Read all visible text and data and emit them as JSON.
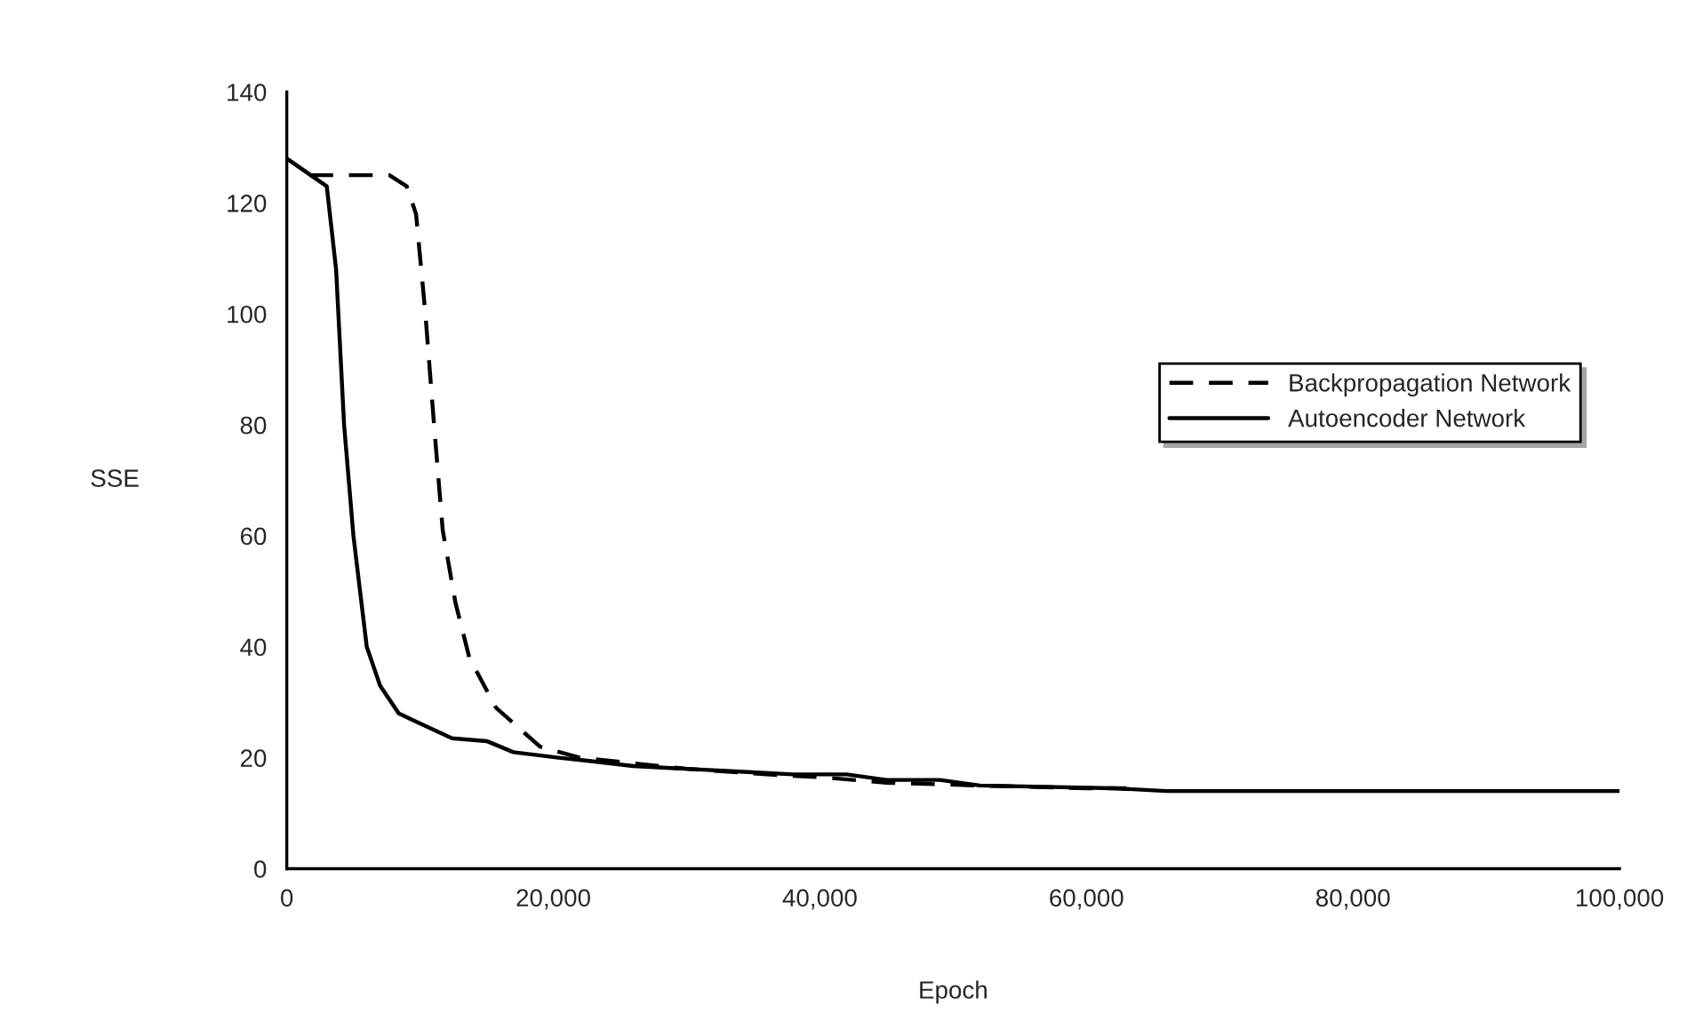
{
  "chart_data": {
    "type": "line",
    "xlabel": "Epoch",
    "ylabel": "SSE",
    "xlim": [
      0,
      100000
    ],
    "ylim": [
      0,
      140
    ],
    "xticks": [
      0,
      {
        "value": 20000,
        "label": "20,000"
      },
      {
        "value": 40000,
        "label": "40,000"
      },
      {
        "value": 60000,
        "label": "60,000"
      },
      {
        "value": 80000,
        "label": "80,000"
      },
      {
        "value": 100000,
        "label": "100,000"
      }
    ],
    "yticks": [
      0,
      20,
      40,
      60,
      80,
      100,
      120,
      140
    ],
    "grid": false,
    "legend": "right",
    "marker": "none",
    "series": [
      {
        "name": "Backpropagation Network",
        "color": "#000000",
        "line_style": "dashed",
        "x": [
          1700,
          7700,
          9000,
          9700,
          10400,
          11050,
          11700,
          12650,
          13700,
          15700,
          19000,
          22000,
          26000,
          30000,
          36000,
          40000,
          45000,
          52000,
          60000,
          63000
        ],
        "values": [
          125,
          125,
          123,
          118,
          100,
          80,
          61,
          48,
          38,
          29,
          22,
          20,
          19,
          18,
          17,
          16.5,
          15.5,
          15,
          14.5,
          14.5
        ]
      },
      {
        "name": "Autoencoder Network",
        "color": "#000000",
        "line_style": "solid",
        "x": [
          0,
          3000,
          3700,
          4300,
          5000,
          6000,
          7000,
          8400,
          9700,
          12400,
          15000,
          17000,
          20400,
          22400,
          26000,
          30000,
          34000,
          38000,
          42000,
          45000,
          49000,
          52000,
          62000,
          66000,
          100000
        ],
        "values": [
          128,
          123,
          108,
          80,
          60,
          40,
          33,
          28,
          26.5,
          23.5,
          23,
          21,
          20,
          19.5,
          18.5,
          18,
          17.5,
          17,
          17,
          16,
          16,
          15,
          14.5,
          14,
          14
        ]
      }
    ]
  }
}
